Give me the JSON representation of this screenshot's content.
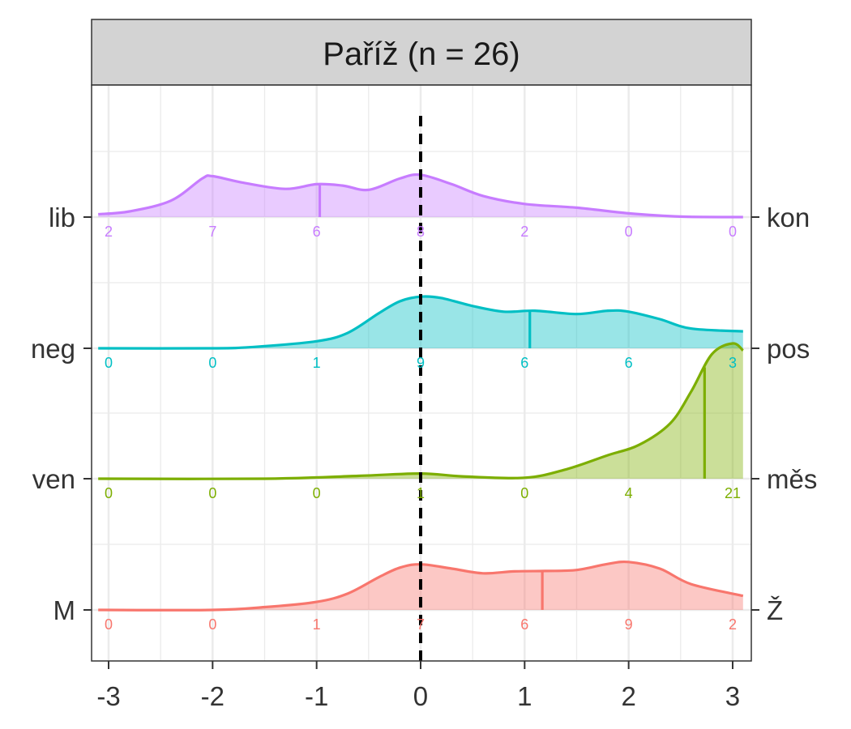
{
  "chart_data": {
    "type": "area",
    "title": "Paříž (n = 26)",
    "xlim": [
      -3.1,
      3.1
    ],
    "x_ticks": [
      -3,
      -2,
      -1,
      0,
      1,
      2,
      3
    ],
    "x_tick_labels": [
      "-3",
      "-2",
      "-1",
      "0",
      "1",
      "2",
      "3"
    ],
    "reference_line_x": 0,
    "grid": true,
    "series": [
      {
        "left_label": "lib",
        "right_label": "kon",
        "color": "#C77CFF",
        "median": -0.97,
        "counts": [
          "2",
          "7",
          "6",
          "8",
          "2",
          "0",
          "0"
        ],
        "density": [
          [
            -3.1,
            0.06
          ],
          [
            -2.8,
            0.12
          ],
          [
            -2.4,
            0.35
          ],
          [
            -2.1,
            0.82
          ],
          [
            -2.0,
            0.87
          ],
          [
            -1.7,
            0.73
          ],
          [
            -1.3,
            0.6
          ],
          [
            -1.0,
            0.7
          ],
          [
            -0.75,
            0.67
          ],
          [
            -0.5,
            0.58
          ],
          [
            -0.2,
            0.82
          ],
          [
            0.0,
            0.9
          ],
          [
            0.3,
            0.7
          ],
          [
            0.6,
            0.45
          ],
          [
            1.0,
            0.28
          ],
          [
            1.5,
            0.2
          ],
          [
            2.0,
            0.08
          ],
          [
            2.5,
            0.01
          ],
          [
            3.1,
            0.0
          ]
        ]
      },
      {
        "left_label": "neg",
        "right_label": "pos",
        "color": "#00BFC4",
        "median": 1.05,
        "counts": [
          "0",
          "0",
          "1",
          "9",
          "6",
          "6",
          "3"
        ],
        "density": [
          [
            -3.1,
            0.0
          ],
          [
            -2.0,
            0.0
          ],
          [
            -1.6,
            0.03
          ],
          [
            -1.0,
            0.15
          ],
          [
            -0.7,
            0.33
          ],
          [
            -0.4,
            0.75
          ],
          [
            -0.2,
            1.0
          ],
          [
            0.0,
            1.1
          ],
          [
            0.2,
            1.07
          ],
          [
            0.5,
            0.9
          ],
          [
            0.8,
            0.78
          ],
          [
            1.1,
            0.8
          ],
          [
            1.5,
            0.73
          ],
          [
            1.8,
            0.8
          ],
          [
            2.0,
            0.78
          ],
          [
            2.3,
            0.62
          ],
          [
            2.6,
            0.42
          ],
          [
            3.1,
            0.36
          ]
        ]
      },
      {
        "left_label": "ven",
        "right_label": "měs",
        "color": "#7CAE00",
        "median": 2.73,
        "counts": [
          "0",
          "0",
          "0",
          "1",
          "0",
          "4",
          "21"
        ],
        "density": [
          [
            -3.1,
            0.0
          ],
          [
            -1.5,
            0.0
          ],
          [
            -0.6,
            0.06
          ],
          [
            0.0,
            0.11
          ],
          [
            0.4,
            0.05
          ],
          [
            1.0,
            0.02
          ],
          [
            1.4,
            0.2
          ],
          [
            1.8,
            0.5
          ],
          [
            2.1,
            0.72
          ],
          [
            2.4,
            1.18
          ],
          [
            2.6,
            1.85
          ],
          [
            2.8,
            2.65
          ],
          [
            3.0,
            2.88
          ],
          [
            3.1,
            2.73
          ]
        ]
      },
      {
        "left_label": "M",
        "right_label": "Ž",
        "color": "#F8766D",
        "median": 1.17,
        "counts": [
          "0",
          "0",
          "1",
          "7",
          "6",
          "9",
          "2"
        ],
        "density": [
          [
            -3.1,
            0.0
          ],
          [
            -2.0,
            0.0
          ],
          [
            -1.5,
            0.06
          ],
          [
            -1.0,
            0.17
          ],
          [
            -0.7,
            0.35
          ],
          [
            -0.4,
            0.7
          ],
          [
            -0.2,
            0.9
          ],
          [
            0.0,
            0.97
          ],
          [
            0.3,
            0.88
          ],
          [
            0.6,
            0.78
          ],
          [
            0.9,
            0.82
          ],
          [
            1.2,
            0.83
          ],
          [
            1.5,
            0.85
          ],
          [
            1.8,
            0.98
          ],
          [
            2.0,
            1.02
          ],
          [
            2.3,
            0.88
          ],
          [
            2.6,
            0.55
          ],
          [
            3.1,
            0.3
          ]
        ]
      }
    ]
  }
}
